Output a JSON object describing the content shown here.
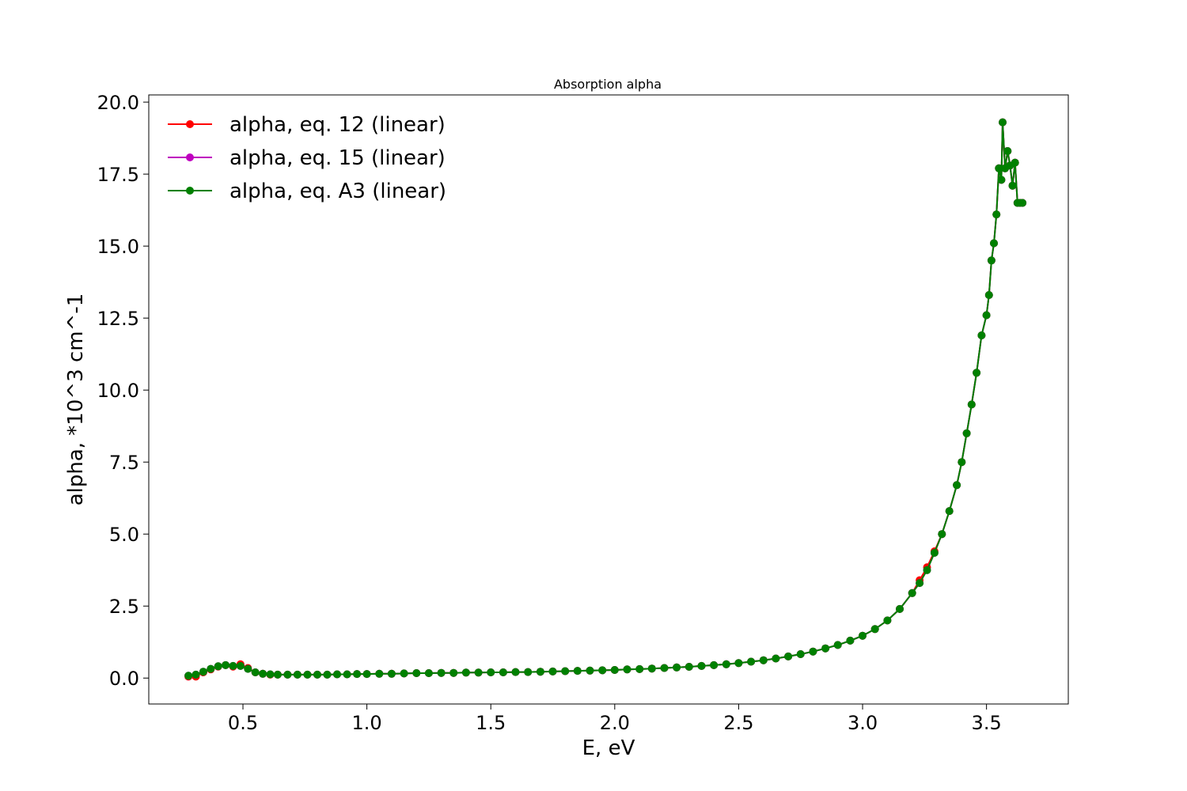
{
  "chart_data": {
    "type": "line",
    "title": "Absorption alpha",
    "xlabel": "E, eV",
    "ylabel": "alpha, *10^3 cm^-1",
    "xlim": [
      0.12,
      3.83
    ],
    "ylim": [
      -0.9,
      20.25
    ],
    "xticks": [
      "0.5",
      "1.0",
      "1.5",
      "2.0",
      "2.5",
      "3.0",
      "3.5"
    ],
    "xtick_values": [
      0.5,
      1.0,
      1.5,
      2.0,
      2.5,
      3.0,
      3.5
    ],
    "yticks": [
      "0.0",
      "2.5",
      "5.0",
      "7.5",
      "10.0",
      "12.5",
      "15.0",
      "17.5",
      "20.0"
    ],
    "ytick_values": [
      0,
      2.5,
      5,
      7.5,
      10,
      12.5,
      15,
      17.5,
      20
    ],
    "grid": false,
    "legend_position": "top-left",
    "x": [
      0.28,
      0.31,
      0.34,
      0.37,
      0.4,
      0.43,
      0.46,
      0.49,
      0.52,
      0.55,
      0.58,
      0.61,
      0.64,
      0.68,
      0.72,
      0.76,
      0.8,
      0.84,
      0.88,
      0.92,
      0.96,
      1.0,
      1.05,
      1.1,
      1.15,
      1.2,
      1.25,
      1.3,
      1.35,
      1.4,
      1.45,
      1.5,
      1.55,
      1.6,
      1.65,
      1.7,
      1.75,
      1.8,
      1.85,
      1.9,
      1.95,
      2.0,
      2.05,
      2.1,
      2.15,
      2.2,
      2.25,
      2.3,
      2.35,
      2.4,
      2.45,
      2.5,
      2.55,
      2.6,
      2.65,
      2.7,
      2.75,
      2.8,
      2.85,
      2.9,
      2.95,
      3.0,
      3.05,
      3.1,
      3.15,
      3.2,
      3.23,
      3.26,
      3.29,
      3.32,
      3.35,
      3.38,
      3.4,
      3.42,
      3.44,
      3.46,
      3.48,
      3.5,
      3.51,
      3.52,
      3.53,
      3.54,
      3.55,
      3.56,
      3.565,
      3.575,
      3.585,
      3.595,
      3.605,
      3.615,
      3.625,
      3.635,
      3.645
    ],
    "series": [
      {
        "name": "alpha, eq. 12 (linear)",
        "color": "#ff0000",
        "values": [
          0.05,
          0.05,
          0.2,
          0.3,
          0.4,
          0.45,
          0.4,
          0.48,
          0.35,
          0.2,
          0.15,
          0.12,
          0.12,
          0.12,
          0.12,
          0.12,
          0.12,
          0.12,
          0.13,
          0.13,
          0.14,
          0.14,
          0.15,
          0.15,
          0.16,
          0.17,
          0.17,
          0.18,
          0.18,
          0.19,
          0.19,
          0.2,
          0.2,
          0.21,
          0.21,
          0.22,
          0.23,
          0.24,
          0.25,
          0.26,
          0.27,
          0.28,
          0.3,
          0.31,
          0.33,
          0.35,
          0.37,
          0.39,
          0.42,
          0.45,
          0.48,
          0.52,
          0.57,
          0.62,
          0.68,
          0.75,
          0.83,
          0.92,
          1.03,
          1.15,
          1.3,
          1.47,
          1.7,
          2.0,
          2.4,
          2.95,
          3.4,
          3.85,
          4.4,
          5.0,
          5.8,
          6.7,
          7.5,
          8.5,
          9.5,
          10.6,
          11.9,
          12.6,
          13.3,
          14.5,
          15.1,
          16.1,
          17.7,
          17.3,
          19.3,
          17.7,
          18.3,
          17.8,
          17.1,
          17.9,
          16.5,
          16.5,
          16.5
        ]
      },
      {
        "name": "alpha, eq. 15 (linear)",
        "color": "#bf00bf",
        "values": [
          0.08,
          0.12,
          0.22,
          0.32,
          0.41,
          0.45,
          0.42,
          0.42,
          0.32,
          0.2,
          0.15,
          0.13,
          0.12,
          0.12,
          0.12,
          0.12,
          0.12,
          0.12,
          0.13,
          0.13,
          0.14,
          0.14,
          0.15,
          0.15,
          0.16,
          0.17,
          0.17,
          0.18,
          0.18,
          0.19,
          0.19,
          0.2,
          0.2,
          0.21,
          0.21,
          0.22,
          0.23,
          0.24,
          0.25,
          0.26,
          0.27,
          0.28,
          0.3,
          0.31,
          0.33,
          0.35,
          0.37,
          0.39,
          0.42,
          0.45,
          0.48,
          0.52,
          0.57,
          0.62,
          0.68,
          0.75,
          0.83,
          0.92,
          1.03,
          1.15,
          1.3,
          1.47,
          1.7,
          2.0,
          2.4,
          2.95,
          3.3,
          3.75,
          4.35,
          5.0,
          5.8,
          6.7,
          7.5,
          8.5,
          9.5,
          10.6,
          11.9,
          12.6,
          13.3,
          14.5,
          15.1,
          16.1,
          17.7,
          17.3,
          19.3,
          17.7,
          18.3,
          17.8,
          17.1,
          17.9,
          16.5,
          16.5,
          16.5
        ]
      },
      {
        "name": "alpha, eq. A3 (linear)",
        "color": "#008000",
        "values": [
          0.08,
          0.12,
          0.22,
          0.32,
          0.41,
          0.45,
          0.42,
          0.42,
          0.32,
          0.2,
          0.15,
          0.13,
          0.12,
          0.12,
          0.12,
          0.12,
          0.12,
          0.12,
          0.13,
          0.13,
          0.14,
          0.14,
          0.15,
          0.15,
          0.16,
          0.17,
          0.17,
          0.18,
          0.18,
          0.19,
          0.19,
          0.2,
          0.2,
          0.21,
          0.21,
          0.22,
          0.23,
          0.24,
          0.25,
          0.26,
          0.27,
          0.28,
          0.3,
          0.31,
          0.33,
          0.35,
          0.37,
          0.39,
          0.42,
          0.45,
          0.48,
          0.52,
          0.57,
          0.62,
          0.68,
          0.75,
          0.83,
          0.92,
          1.03,
          1.15,
          1.3,
          1.47,
          1.7,
          2.0,
          2.4,
          2.95,
          3.3,
          3.75,
          4.35,
          5.0,
          5.8,
          6.7,
          7.5,
          8.5,
          9.5,
          10.6,
          11.9,
          12.6,
          13.3,
          14.5,
          15.1,
          16.1,
          17.7,
          17.3,
          19.3,
          17.7,
          18.3,
          17.8,
          17.1,
          17.9,
          16.5,
          16.5,
          16.5
        ]
      }
    ]
  }
}
